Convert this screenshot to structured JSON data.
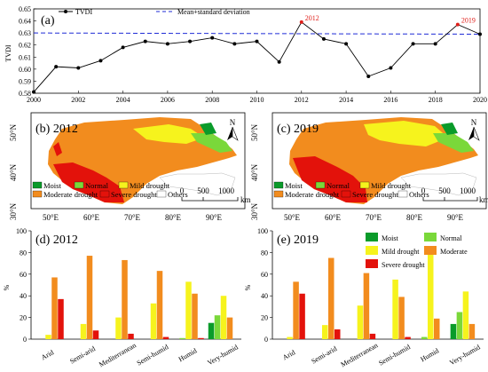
{
  "colors": {
    "tvdi_line": "#000000",
    "threshold_line": "#1f2bd6",
    "highlight": "#e0201b",
    "Moist": "#0a9b2a",
    "Normal": "#7ad83a",
    "Mild drought": "#f6f31d",
    "Moderate drought": "#f28c1e",
    "Severe drought": "#e3120b",
    "Others": "#ffffff"
  },
  "chart_data": [
    {
      "type": "line",
      "panel_label": "(a)",
      "ylabel": "TVDI",
      "xlim": [
        2000,
        2020
      ],
      "ylim": [
        0.58,
        0.65
      ],
      "xticks": [
        "2000",
        "2002",
        "2004",
        "2006",
        "2008",
        "2010",
        "2012",
        "2014",
        "2016",
        "2018",
        "2020"
      ],
      "yticks": [
        "0.58",
        "0.59",
        "0.60",
        "0.61",
        "0.62",
        "0.63",
        "0.64",
        "0.65"
      ],
      "legend": [
        "TVDI",
        "Mean+standard deviation"
      ],
      "series": [
        {
          "name": "TVDI",
          "x": [
            2000,
            2001,
            2002,
            2003,
            2004,
            2005,
            2006,
            2007,
            2008,
            2009,
            2010,
            2011,
            2012,
            2013,
            2014,
            2015,
            2016,
            2017,
            2018,
            2019,
            2020
          ],
          "values": [
            0.581,
            0.602,
            0.601,
            0.607,
            0.618,
            0.623,
            0.621,
            0.623,
            0.626,
            0.621,
            0.623,
            0.606,
            0.639,
            0.625,
            0.621,
            0.594,
            0.601,
            0.621,
            0.621,
            0.637,
            0.629
          ]
        },
        {
          "name": "Mean+standard deviation",
          "x": [
            2000,
            2020
          ],
          "values": [
            0.63,
            0.629
          ]
        }
      ],
      "annotations": [
        {
          "text": "2012",
          "x": 2012,
          "y": 0.639
        },
        {
          "text": "2019",
          "x": 2019,
          "y": 0.637
        }
      ]
    },
    {
      "type": "bar",
      "panel_label": "(d) 2012",
      "ylabel": "%",
      "ylim": [
        0,
        100
      ],
      "yticks": [
        "0",
        "20",
        "40",
        "60",
        "80",
        "100"
      ],
      "categories": [
        "Arid",
        "Semi-arid",
        "Mediterranean",
        "Semi-humid",
        "Humid",
        "Very-humid"
      ],
      "series": [
        {
          "name": "Moist",
          "values": [
            0,
            0,
            0,
            0,
            0,
            15
          ]
        },
        {
          "name": "Normal",
          "values": [
            0,
            0,
            0,
            0,
            1,
            22
          ]
        },
        {
          "name": "Mild drought",
          "values": [
            4,
            14,
            20,
            33,
            53,
            40
          ]
        },
        {
          "name": "Moderate drought",
          "values": [
            57,
            77,
            73,
            63,
            42,
            20
          ]
        },
        {
          "name": "Severe drought",
          "values": [
            37,
            8,
            5,
            2,
            1,
            0
          ]
        }
      ]
    },
    {
      "type": "bar",
      "panel_label": "(e) 2019",
      "ylabel": "%",
      "ylim": [
        0,
        100
      ],
      "yticks": [
        "0",
        "20",
        "40",
        "60",
        "80",
        "100"
      ],
      "categories": [
        "Arid",
        "Semi-arid",
        "Mediterranean",
        "Semi-humid",
        "Humid",
        "Very-humid"
      ],
      "series": [
        {
          "name": "Moist",
          "values": [
            0,
            0,
            0,
            0,
            0,
            14
          ]
        },
        {
          "name": "Normal",
          "values": [
            0,
            0,
            0,
            0,
            2,
            25
          ]
        },
        {
          "name": "Mild drought",
          "values": [
            2,
            13,
            31,
            55,
            78,
            44
          ]
        },
        {
          "name": "Moderate drought",
          "values": [
            53,
            75,
            61,
            39,
            19,
            14
          ]
        },
        {
          "name": "Severe drought",
          "values": [
            42,
            9,
            5,
            2,
            0,
            0
          ]
        }
      ],
      "legend": [
        "Moist",
        "Normal",
        "Mild drought",
        "Moderate",
        "Severe drought"
      ]
    }
  ],
  "maps": [
    {
      "panel_label": "(b) 2012",
      "lat_ticks": [
        "50°N",
        "40°N",
        "30°N"
      ],
      "lon_ticks": [
        "50°E",
        "60°E",
        "70°E",
        "80°E",
        "90°E"
      ],
      "north": "N",
      "scale_labels": [
        "0",
        "500",
        "1000",
        "km"
      ],
      "legend": [
        "Moist",
        "Normal",
        "Mild drought",
        "Moderate drought",
        "Severe drought",
        "Others"
      ]
    },
    {
      "panel_label": "(c) 2019",
      "lat_ticks": [
        "50°N",
        "40°N",
        "30°N"
      ],
      "lon_ticks": [
        "50°E",
        "60°E",
        "70°E",
        "80°E",
        "90°E"
      ],
      "north": "N",
      "scale_labels": [
        "0",
        "500",
        "1000",
        "km"
      ],
      "legend": [
        "Moist",
        "Normal",
        "Mild drought",
        "Moderate drought",
        "Severe drought",
        "Others"
      ]
    }
  ]
}
